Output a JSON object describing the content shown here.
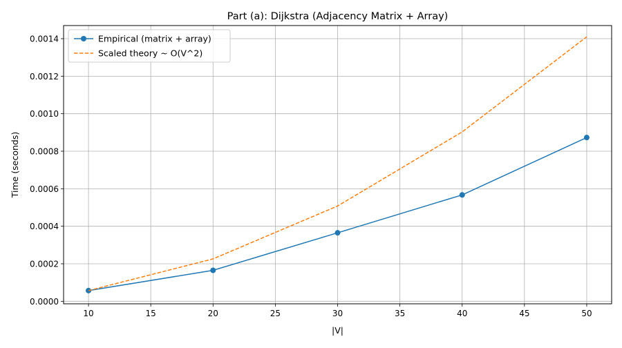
{
  "chart_data": {
    "type": "line",
    "title": "Part (a): Dijkstra (Adjacency Matrix + Array)",
    "xlabel": "|V|",
    "ylabel": "Time (seconds)",
    "xlim": [
      8,
      52
    ],
    "ylim": [
      -1.35e-05,
      0.00147
    ],
    "xticks": [
      10,
      15,
      20,
      25,
      30,
      35,
      40,
      45,
      50
    ],
    "yticks": [
      0.0,
      0.0002,
      0.0004,
      0.0006,
      0.0008,
      0.001,
      0.0012,
      0.0014
    ],
    "xtick_labels": [
      "10",
      "15",
      "20",
      "25",
      "30",
      "35",
      "40",
      "45",
      "50"
    ],
    "ytick_labels": [
      "0.0000",
      "0.0002",
      "0.0004",
      "0.0006",
      "0.0008",
      "0.0010",
      "0.0012",
      "0.0014"
    ],
    "grid": true,
    "legend_position": "upper-left",
    "series": [
      {
        "name": "Empirical (matrix + array)",
        "x": [
          10,
          20,
          30,
          40,
          50
        ],
        "y": [
          5.7e-05,
          0.000165,
          0.000365,
          0.000567,
          0.000873
        ],
        "color": "#1f77b4",
        "style": "solid",
        "marker": "circle"
      },
      {
        "name": "Scaled theory ~ O(V^2)",
        "x": [
          10,
          20,
          30,
          40,
          50
        ],
        "y": [
          5.7e-05,
          0.000226,
          0.000508,
          0.000903,
          0.00141
        ],
        "color": "#ff7f0e",
        "style": "dashed",
        "marker": "none"
      }
    ]
  }
}
